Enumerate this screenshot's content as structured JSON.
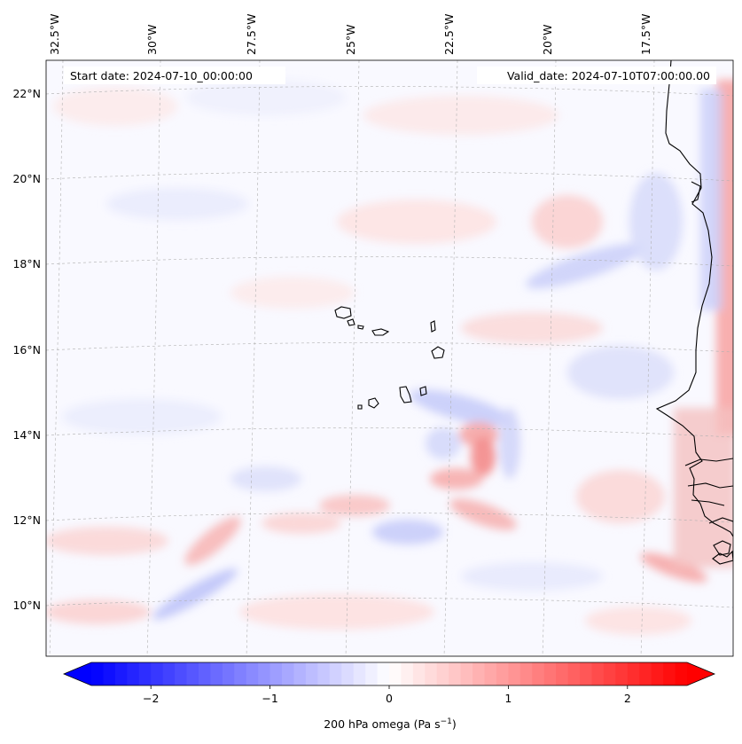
{
  "map": {
    "longitude_labels": [
      "32.5°W",
      "30°W",
      "27.5°W",
      "25°W",
      "22.5°W",
      "20°W",
      "17.5°W"
    ],
    "latitude_labels": [
      "22°N",
      "20°N",
      "18°N",
      "16°N",
      "14°N",
      "12°N",
      "10°N"
    ],
    "start_date_text": "Start date: 2024-07-10_00:00:00",
    "valid_date_text": "Valid_date: 2024-07-10T07:00:00.00",
    "coastline_color": "#000000",
    "gridline_color": "#b0b0b0"
  },
  "colorbar": {
    "tick_labels": [
      "−2",
      "−1",
      "0",
      "1",
      "2"
    ],
    "tick_values": [
      -2,
      -1,
      0,
      1,
      2
    ],
    "range": [
      -2.5,
      2.5
    ],
    "label_prefix": "200 hPa omega (Pa s",
    "label_exponent": "−1",
    "label_suffix": ")",
    "color_min": "#0000ff",
    "color_mid": "#ffffff",
    "color_max": "#ff0000"
  }
}
